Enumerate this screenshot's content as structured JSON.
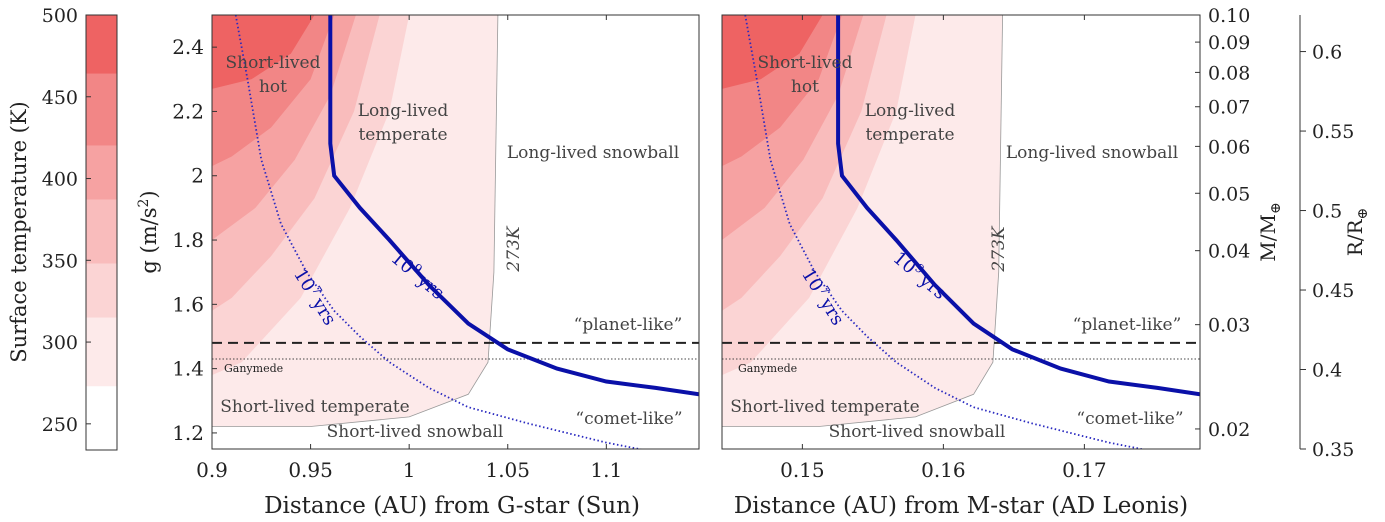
{
  "colorbar": {
    "label": "Surface temperature (K)",
    "ticks": [
      250,
      300,
      350,
      400,
      450,
      500
    ],
    "range": [
      234,
      500
    ],
    "levels": [
      {
        "from": 234,
        "to": 273,
        "color": "#ffffff"
      },
      {
        "from": 273,
        "to": 315,
        "color": "#fdeaea"
      },
      {
        "from": 315,
        "to": 348,
        "color": "#fbd4d4"
      },
      {
        "from": 348,
        "to": 387,
        "color": "#f9bcbc"
      },
      {
        "from": 387,
        "to": 420,
        "color": "#f6a2a2"
      },
      {
        "from": 420,
        "to": 464,
        "color": "#f28686"
      },
      {
        "from": 464,
        "to": 500,
        "color": "#ee6363"
      }
    ]
  },
  "chart_data": [
    {
      "type": "area",
      "xlabel": "Distance (AU) from G-star (Sun)",
      "ylabel": "g (m/s²)",
      "ylabel_main": "g (m/s",
      "ylabel_sup": "2",
      "ylabel_tail": ")",
      "xlim": [
        0.9,
        1.147
      ],
      "ylim": [
        1.15,
        2.5
      ],
      "xticks": [
        0.9,
        0.95,
        1,
        1.05,
        1.1
      ],
      "xtick_labels": [
        "0.9",
        "0.95",
        "1",
        "1.05",
        "1.1"
      ],
      "yticks": [
        1.2,
        1.4,
        1.6,
        1.8,
        2,
        2.2,
        2.4
      ],
      "ytick_labels": [
        "1.2",
        "1.4",
        "1.6",
        "1.8",
        "2",
        "2.2",
        "2.4"
      ],
      "contour_273K_boundary": [
        [
          0.9,
          1.22
        ],
        [
          0.95,
          1.22
        ],
        [
          1.0,
          1.25
        ],
        [
          1.03,
          1.32
        ],
        [
          1.04,
          1.42
        ],
        [
          1.043,
          1.7
        ],
        [
          1.045,
          2.5
        ]
      ],
      "curve_1e9_yrs": [
        [
          0.96,
          2.5
        ],
        [
          0.96,
          2.1
        ],
        [
          0.962,
          2.0
        ],
        [
          0.975,
          1.9
        ],
        [
          0.99,
          1.8
        ],
        [
          1.01,
          1.66
        ],
        [
          1.03,
          1.54
        ],
        [
          1.05,
          1.46
        ],
        [
          1.075,
          1.4
        ],
        [
          1.1,
          1.36
        ],
        [
          1.125,
          1.34
        ],
        [
          1.147,
          1.32
        ]
      ],
      "curve_1e7_yrs": [
        [
          0.912,
          2.5
        ],
        [
          0.918,
          2.3
        ],
        [
          0.925,
          2.05
        ],
        [
          0.935,
          1.85
        ],
        [
          0.948,
          1.7
        ],
        [
          0.962,
          1.58
        ],
        [
          0.975,
          1.5
        ],
        [
          0.99,
          1.42
        ],
        [
          1.01,
          1.34
        ],
        [
          1.03,
          1.28
        ],
        [
          1.06,
          1.23
        ],
        [
          1.1,
          1.17
        ],
        [
          1.125,
          1.14
        ]
      ],
      "planet_like_g": 1.48,
      "ganymede_g": 1.43,
      "labels": {
        "short_lived_hot": [
          "Short-lived",
          "hot"
        ],
        "long_lived_temperate": [
          "Long-lived",
          "temperate"
        ],
        "long_lived_snowball": "Long-lived snowball",
        "short_lived_temperate": "Short-lived temperate",
        "short_lived_snowball": "Short-lived snowball",
        "iso_273": "273K",
        "yrs9": "10⁹ yrs",
        "yrs7": "10⁷ yrs",
        "yrs_base": "10",
        "yrs9_exp": "9",
        "yrs7_exp": "7",
        "yrs_word": "yrs",
        "planet_like": "“planet-like”",
        "comet_like": "“comet-like”",
        "ganymede": "Ganymede"
      }
    },
    {
      "type": "area",
      "xlabel": "Distance (AU) from M-star (AD Leonis)",
      "xlim": [
        0.1443,
        0.1782
      ],
      "ylim": [
        1.15,
        2.5
      ],
      "xticks": [
        0.15,
        0.16,
        0.17
      ],
      "xtick_labels": [
        "0.15",
        "0.16",
        "0.17"
      ],
      "right_axis_mass": {
        "label": "M/M⊕",
        "label_main": "M/M",
        "label_sub": "⊕",
        "ticks": [
          0.02,
          0.03,
          0.04,
          0.05,
          0.06,
          0.07,
          0.08,
          0.09,
          0.1
        ],
        "tick_labels": [
          "0.02",
          "0.03",
          "0.04",
          "0.05",
          "0.06",
          "0.07",
          "0.08",
          "0.09",
          "0.10"
        ]
      },
      "right_axis_radius": {
        "label": "R/R⊕",
        "label_main": "R/R",
        "label_sub": "⊕",
        "ticks": [
          0.35,
          0.4,
          0.45,
          0.5,
          0.55,
          0.6
        ],
        "tick_labels": [
          "0.35",
          "0.4",
          "0.45",
          "0.5",
          "0.55",
          "0.6"
        ],
        "lim": [
          0.35,
          0.623
        ]
      }
    }
  ]
}
